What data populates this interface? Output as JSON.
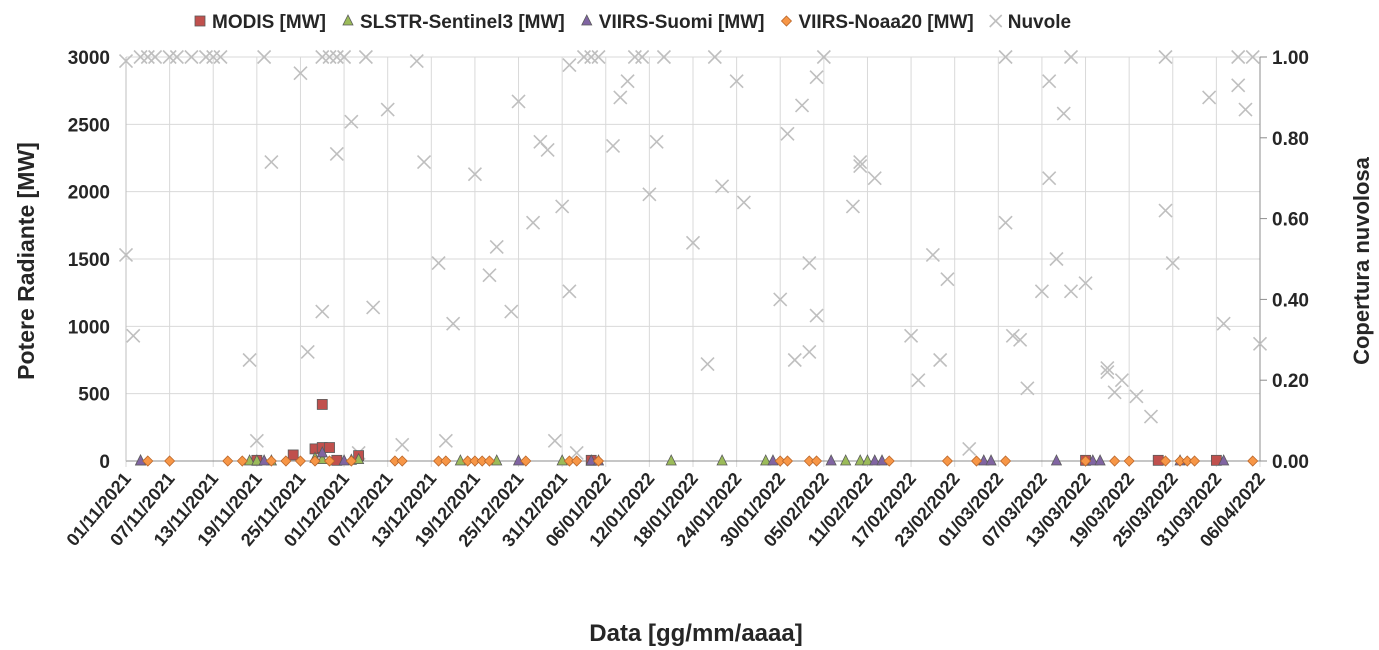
{
  "chart_data": {
    "type": "scatter",
    "xlabel": "Data [gg/mm/aaaa]",
    "ylabel": "Potere Radiante [MW]",
    "y2label": "Copertura nuvolosa",
    "x_start": "2021-11-01",
    "x_end": "2022-04-06",
    "x_ticks": [
      "01/11/2021",
      "07/11/2021",
      "13/11/2021",
      "19/11/2021",
      "25/11/2021",
      "01/12/2021",
      "07/12/2021",
      "13/12/2021",
      "19/12/2021",
      "25/12/2021",
      "31/12/2021",
      "06/01/2022",
      "12/01/2022",
      "18/01/2022",
      "24/01/2022",
      "30/01/2022",
      "05/02/2022",
      "11/02/2022",
      "17/02/2022",
      "23/02/2022",
      "01/03/2022",
      "07/03/2022",
      "13/03/2022",
      "19/03/2022",
      "25/03/2022",
      "31/03/2022",
      "06/04/2022"
    ],
    "y_ticks": [
      "0",
      "500",
      "1000",
      "1500",
      "2000",
      "2500",
      "3000"
    ],
    "y2_ticks": [
      "0.00",
      "0.20",
      "0.40",
      "0.60",
      "0.80",
      "1.00"
    ],
    "ylim": [
      0,
      3000
    ],
    "y2lim": [
      0,
      1
    ],
    "grid": "vertical",
    "legend_position": "top",
    "series": [
      {
        "name": "MODIS [MW]",
        "axis": "left",
        "marker": "square",
        "color": "#c0504d",
        "points": [
          [
            "2021-11-19",
            5
          ],
          [
            "2021-11-24",
            45
          ],
          [
            "2021-11-27",
            90
          ],
          [
            "2021-11-28",
            420
          ],
          [
            "2021-11-28",
            100
          ],
          [
            "2021-11-29",
            100
          ],
          [
            "2021-11-30",
            5
          ],
          [
            "2021-12-03",
            40
          ],
          [
            "2022-01-04",
            5
          ],
          [
            "2022-03-13",
            5
          ],
          [
            "2022-03-23",
            5
          ],
          [
            "2022-03-31",
            5
          ]
        ]
      },
      {
        "name": "SLSTR-Sentinel3 [MW]",
        "axis": "left",
        "marker": "triangle",
        "color": "#9bbb59",
        "points": [
          [
            "2021-11-03",
            0
          ],
          [
            "2021-11-18",
            0
          ],
          [
            "2021-11-19",
            0
          ],
          [
            "2021-11-21",
            0
          ],
          [
            "2021-11-27",
            20
          ],
          [
            "2021-11-28",
            10
          ],
          [
            "2021-12-02",
            5
          ],
          [
            "2021-12-03",
            10
          ],
          [
            "2021-12-17",
            0
          ],
          [
            "2021-12-22",
            0
          ],
          [
            "2021-12-31",
            0
          ],
          [
            "2022-01-15",
            0
          ],
          [
            "2022-01-22",
            0
          ],
          [
            "2022-01-28",
            0
          ],
          [
            "2022-02-08",
            0
          ],
          [
            "2022-02-10",
            0
          ],
          [
            "2022-02-11",
            0
          ]
        ]
      },
      {
        "name": "VIIRS-Suomi  [MW]",
        "axis": "left",
        "marker": "triangle",
        "color": "#8064a2",
        "points": [
          [
            "2021-11-03",
            0
          ],
          [
            "2021-11-20",
            0
          ],
          [
            "2021-11-28",
            60
          ],
          [
            "2021-12-01",
            0
          ],
          [
            "2021-12-25",
            0
          ],
          [
            "2022-01-04",
            0
          ],
          [
            "2022-01-05",
            0
          ],
          [
            "2022-01-29",
            0
          ],
          [
            "2022-02-06",
            0
          ],
          [
            "2022-02-12",
            0
          ],
          [
            "2022-02-13",
            0
          ],
          [
            "2022-02-27",
            0
          ],
          [
            "2022-02-28",
            0
          ],
          [
            "2022-03-09",
            0
          ],
          [
            "2022-03-14",
            0
          ],
          [
            "2022-03-15",
            0
          ],
          [
            "2022-03-26",
            0
          ],
          [
            "2022-04-01",
            0
          ]
        ]
      },
      {
        "name": "VIIRS-Noaa20 [MW]",
        "axis": "left",
        "marker": "diamond",
        "color": "#f79646",
        "points": [
          [
            "2021-11-04",
            0
          ],
          [
            "2021-11-07",
            0
          ],
          [
            "2021-11-15",
            0
          ],
          [
            "2021-11-17",
            0
          ],
          [
            "2021-11-21",
            0
          ],
          [
            "2021-11-23",
            0
          ],
          [
            "2021-11-25",
            0
          ],
          [
            "2021-11-27",
            0
          ],
          [
            "2021-11-29",
            0
          ],
          [
            "2021-12-02",
            0
          ],
          [
            "2021-12-08",
            0
          ],
          [
            "2021-12-09",
            0
          ],
          [
            "2021-12-14",
            0
          ],
          [
            "2021-12-15",
            0
          ],
          [
            "2021-12-18",
            0
          ],
          [
            "2021-12-19",
            0
          ],
          [
            "2021-12-20",
            0
          ],
          [
            "2021-12-21",
            0
          ],
          [
            "2021-12-26",
            0
          ],
          [
            "2022-01-01",
            0
          ],
          [
            "2022-01-02",
            0
          ],
          [
            "2022-01-05",
            0
          ],
          [
            "2022-01-30",
            0
          ],
          [
            "2022-01-31",
            0
          ],
          [
            "2022-02-03",
            0
          ],
          [
            "2022-02-04",
            0
          ],
          [
            "2022-02-14",
            0
          ],
          [
            "2022-02-22",
            0
          ],
          [
            "2022-02-26",
            0
          ],
          [
            "2022-03-02",
            0
          ],
          [
            "2022-03-13",
            0
          ],
          [
            "2022-03-17",
            0
          ],
          [
            "2022-03-19",
            0
          ],
          [
            "2022-03-24",
            0
          ],
          [
            "2022-03-26",
            0
          ],
          [
            "2022-03-27",
            0
          ],
          [
            "2022-03-28",
            0
          ],
          [
            "2022-04-05",
            0
          ]
        ]
      },
      {
        "name": "Nuvole",
        "axis": "right",
        "marker": "x",
        "color": "#bfbfbf",
        "points": [
          [
            "2021-11-01",
            0.51
          ],
          [
            "2021-11-01",
            0.99
          ],
          [
            "2021-11-02",
            0.31
          ],
          [
            "2021-11-03",
            1.0
          ],
          [
            "2021-11-04",
            1.0
          ],
          [
            "2021-11-05",
            1.0
          ],
          [
            "2021-11-07",
            1.0
          ],
          [
            "2021-11-08",
            1.0
          ],
          [
            "2021-11-10",
            1.0
          ],
          [
            "2021-11-12",
            1.0
          ],
          [
            "2021-11-13",
            1.0
          ],
          [
            "2021-11-14",
            1.0
          ],
          [
            "2021-11-18",
            0.25
          ],
          [
            "2021-11-19",
            0.05
          ],
          [
            "2021-11-20",
            1.0
          ],
          [
            "2021-11-21",
            0.74
          ],
          [
            "2021-11-25",
            0.96
          ],
          [
            "2021-11-26",
            0.27
          ],
          [
            "2021-11-28",
            1.0
          ],
          [
            "2021-11-28",
            0.37
          ],
          [
            "2021-11-29",
            1.0
          ],
          [
            "2021-11-30",
            0.76
          ],
          [
            "2021-11-30",
            1.0
          ],
          [
            "2021-12-01",
            1.0
          ],
          [
            "2021-12-02",
            0.84
          ],
          [
            "2021-12-03",
            0.02
          ],
          [
            "2021-12-04",
            1.0
          ],
          [
            "2021-12-05",
            0.38
          ],
          [
            "2021-12-07",
            0.87
          ],
          [
            "2021-12-09",
            0.04
          ],
          [
            "2021-12-11",
            0.99
          ],
          [
            "2021-12-12",
            0.74
          ],
          [
            "2021-12-14",
            0.49
          ],
          [
            "2021-12-15",
            0.05
          ],
          [
            "2021-12-16",
            0.34
          ],
          [
            "2021-12-19",
            0.71
          ],
          [
            "2021-12-21",
            0.46
          ],
          [
            "2021-12-22",
            0.53
          ],
          [
            "2021-12-24",
            0.37
          ],
          [
            "2021-12-25",
            0.89
          ],
          [
            "2021-12-27",
            0.59
          ],
          [
            "2021-12-28",
            0.79
          ],
          [
            "2021-12-29",
            0.77
          ],
          [
            "2021-12-30",
            0.05
          ],
          [
            "2021-12-31",
            0.63
          ],
          [
            "2022-01-01",
            0.42
          ],
          [
            "2022-01-01",
            0.98
          ],
          [
            "2022-01-02",
            0.02
          ],
          [
            "2022-01-03",
            1.0
          ],
          [
            "2022-01-04",
            1.0
          ],
          [
            "2022-01-05",
            1.0
          ],
          [
            "2022-01-07",
            0.78
          ],
          [
            "2022-01-08",
            0.9
          ],
          [
            "2022-01-09",
            0.94
          ],
          [
            "2022-01-10",
            1.0
          ],
          [
            "2022-01-11",
            1.0
          ],
          [
            "2022-01-12",
            0.66
          ],
          [
            "2022-01-13",
            0.79
          ],
          [
            "2022-01-14",
            1.0
          ],
          [
            "2022-01-18",
            0.54
          ],
          [
            "2022-01-20",
            0.24
          ],
          [
            "2022-01-21",
            1.0
          ],
          [
            "2022-01-22",
            0.68
          ],
          [
            "2022-01-24",
            0.94
          ],
          [
            "2022-01-25",
            0.64
          ],
          [
            "2022-01-30",
            0.4
          ],
          [
            "2022-01-31",
            0.81
          ],
          [
            "2022-02-01",
            0.25
          ],
          [
            "2022-02-02",
            0.88
          ],
          [
            "2022-02-03",
            0.49
          ],
          [
            "2022-02-03",
            0.27
          ],
          [
            "2022-02-04",
            0.36
          ],
          [
            "2022-02-04",
            0.95
          ],
          [
            "2022-02-05",
            1.0
          ],
          [
            "2022-02-09",
            0.63
          ],
          [
            "2022-02-10",
            0.74
          ],
          [
            "2022-02-10",
            0.73
          ],
          [
            "2022-02-12",
            0.7
          ],
          [
            "2022-02-17",
            0.31
          ],
          [
            "2022-02-18",
            0.2
          ],
          [
            "2022-02-20",
            0.51
          ],
          [
            "2022-02-21",
            0.25
          ],
          [
            "2022-02-22",
            0.45
          ],
          [
            "2022-02-25",
            0.03
          ],
          [
            "2022-03-02",
            1.0
          ],
          [
            "2022-03-02",
            0.59
          ],
          [
            "2022-03-03",
            0.31
          ],
          [
            "2022-03-04",
            0.3
          ],
          [
            "2022-03-05",
            0.18
          ],
          [
            "2022-03-07",
            0.42
          ],
          [
            "2022-03-08",
            0.94
          ],
          [
            "2022-03-08",
            0.7
          ],
          [
            "2022-03-09",
            0.5
          ],
          [
            "2022-03-10",
            0.86
          ],
          [
            "2022-03-11",
            1.0
          ],
          [
            "2022-03-11",
            0.42
          ],
          [
            "2022-03-13",
            0.44
          ],
          [
            "2022-03-16",
            0.23
          ],
          [
            "2022-03-16",
            0.22
          ],
          [
            "2022-03-17",
            0.17
          ],
          [
            "2022-03-18",
            0.2
          ],
          [
            "2022-03-20",
            0.16
          ],
          [
            "2022-03-22",
            0.11
          ],
          [
            "2022-03-24",
            1.0
          ],
          [
            "2022-03-24",
            0.62
          ],
          [
            "2022-03-25",
            0.49
          ],
          [
            "2022-03-30",
            0.9
          ],
          [
            "2022-04-01",
            0.34
          ],
          [
            "2022-04-03",
            0.93
          ],
          [
            "2022-04-03",
            1.0
          ],
          [
            "2022-04-04",
            0.87
          ],
          [
            "2022-04-05",
            1.0
          ],
          [
            "2022-04-06",
            0.29
          ]
        ]
      }
    ]
  }
}
